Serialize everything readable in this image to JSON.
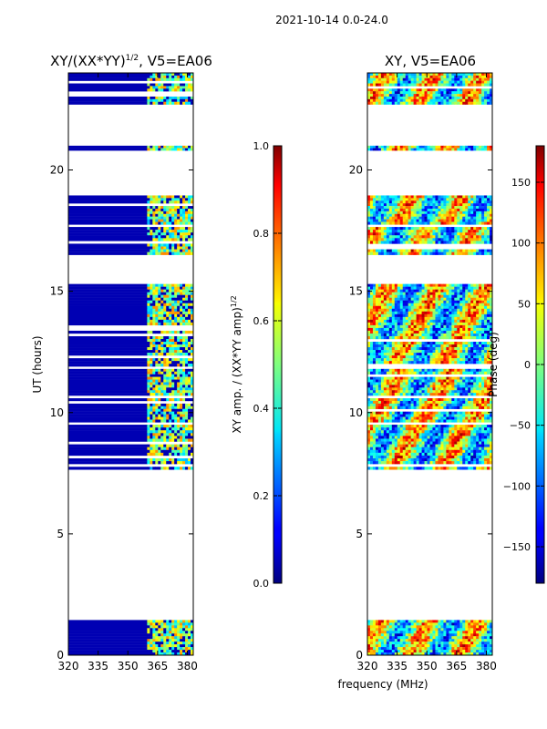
{
  "suptitle": "2021-10-14 0.0-24.0",
  "shared_xlabel": "frequency (MHz)",
  "chart_data": [
    {
      "type": "heatmap",
      "title_main": "XY/(XX*YY)",
      "title_exp": "1/2",
      "title_tail": ", V5=EA06",
      "xlabel": "",
      "ylabel": "UT (hours)",
      "xlim": [
        320,
        383
      ],
      "ylim": [
        0,
        24
      ],
      "xticks": [
        320,
        335,
        350,
        365,
        380
      ],
      "yticks": [
        0,
        5,
        10,
        15,
        20
      ],
      "colorbar": {
        "label_main": "XY amp. / (XX*YY amp)",
        "label_exp": "1/2",
        "range": [
          0.0,
          1.0
        ],
        "ticks": [
          "0.0",
          "0.2",
          "0.4",
          "0.6",
          "0.8",
          "1.0"
        ],
        "tick_values": [
          0.0,
          0.2,
          0.4,
          0.6,
          0.8,
          1.0
        ]
      },
      "data_blocks_hours": [
        [
          0.0,
          1.45
        ],
        [
          7.65,
          9.5
        ],
        [
          9.6,
          11.8
        ],
        [
          11.9,
          15.3
        ],
        [
          16.5,
          17.65
        ],
        [
          17.75,
          18.95
        ],
        [
          20.8,
          21.0
        ],
        [
          22.7,
          24.0
        ]
      ],
      "active_band_mhz": [
        360,
        383
      ],
      "background_value": 0.05,
      "active_value_range": [
        0.3,
        0.75
      ]
    },
    {
      "type": "heatmap",
      "title": "XY, V5=EA06",
      "xlabel": "",
      "ylabel": "",
      "xlim": [
        320,
        383
      ],
      "ylim": [
        0,
        24
      ],
      "xticks": [
        320,
        335,
        350,
        365,
        380
      ],
      "yticks": [
        0,
        5,
        10,
        15,
        20
      ],
      "colorbar": {
        "label": "Phase (deg)",
        "range": [
          -180,
          180
        ],
        "ticks": [
          "−150",
          "−100",
          "−50",
          "0",
          "50",
          "100",
          "150"
        ],
        "tick_values": [
          -150,
          -100,
          -50,
          0,
          50,
          100,
          150
        ]
      },
      "data_blocks_hours": [
        [
          0.0,
          1.45
        ],
        [
          7.65,
          9.5
        ],
        [
          9.6,
          11.8
        ],
        [
          11.9,
          15.3
        ],
        [
          16.5,
          17.65
        ],
        [
          17.75,
          18.95
        ],
        [
          20.8,
          21.0
        ],
        [
          22.7,
          24.0
        ]
      ],
      "value_range_deg": [
        -180,
        180
      ]
    }
  ]
}
